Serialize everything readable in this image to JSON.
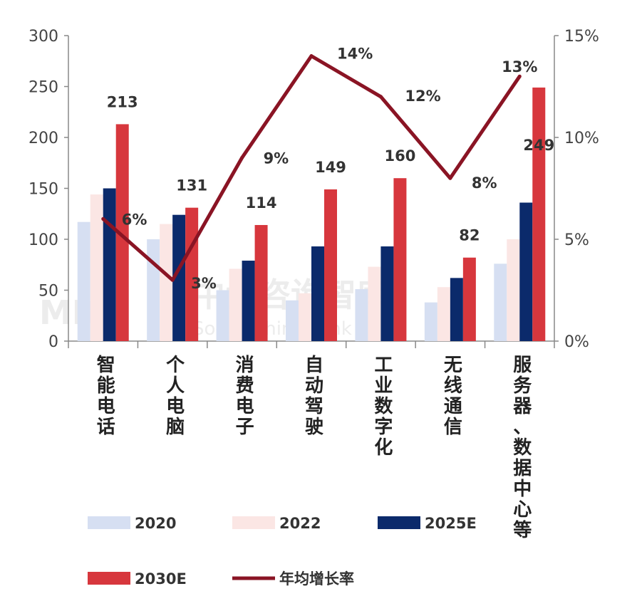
{
  "chart_data": {
    "type": "bar",
    "categories": [
      "智能电话",
      "个人电脑",
      "消费电子",
      "自动驾驶",
      "工业数字化",
      "无线通信",
      "服务器、数据中心等"
    ],
    "category_lines": [
      [
        "智",
        "能",
        "电",
        "话"
      ],
      [
        "个",
        "人",
        "电",
        "脑"
      ],
      [
        "消",
        "费",
        "电",
        "子"
      ],
      [
        "自",
        "动",
        "驾",
        "驶"
      ],
      [
        "工",
        "业",
        "数",
        "字",
        "化"
      ],
      [
        "无",
        "线",
        "通",
        "信"
      ],
      [
        "服",
        "务",
        "器",
        "、",
        "数",
        "据",
        "中",
        "心",
        "等"
      ]
    ],
    "series": [
      {
        "name": "2020",
        "values": [
          117,
          100,
          50,
          40,
          51,
          38,
          76
        ],
        "color": "#d6dff2"
      },
      {
        "name": "2022",
        "values": [
          144,
          115,
          71,
          47,
          73,
          53,
          100
        ],
        "color": "#fbe6e4"
      },
      {
        "name": "2025E",
        "values": [
          150,
          124,
          79,
          93,
          93,
          62,
          136
        ],
        "color": "#0b2a6b"
      },
      {
        "name": "2030E",
        "values": [
          213,
          131,
          114,
          149,
          160,
          82,
          249
        ],
        "color": "#d7373d"
      }
    ],
    "line_series": {
      "name": "年均增长率",
      "values": [
        6,
        3,
        9,
        14,
        12,
        8,
        13
      ],
      "color": "#8a1424",
      "axis": "right"
    },
    "bar_data_labels": [
      "213",
      "131",
      "114",
      "149",
      "160",
      "82",
      "249"
    ],
    "line_data_labels": [
      "6%",
      "3%",
      "9%",
      "14%",
      "12%",
      "8%",
      "13%"
    ],
    "y_left": {
      "min": 0,
      "max": 300,
      "ticks": [
        "0",
        "50",
        "100",
        "150",
        "200",
        "250",
        "300"
      ]
    },
    "y_right": {
      "min": 0,
      "max": 15,
      "ticks": [
        "0%",
        "5%",
        "10%",
        "15%"
      ]
    },
    "legend": {
      "placement": "bottom",
      "items": [
        "2020",
        "2022",
        "2025E",
        "2030E",
        "年均增长率"
      ]
    }
  },
  "watermark": {
    "main": "中大咨询智库",
    "sub": "Social Think Tank",
    "logo": "MB"
  }
}
